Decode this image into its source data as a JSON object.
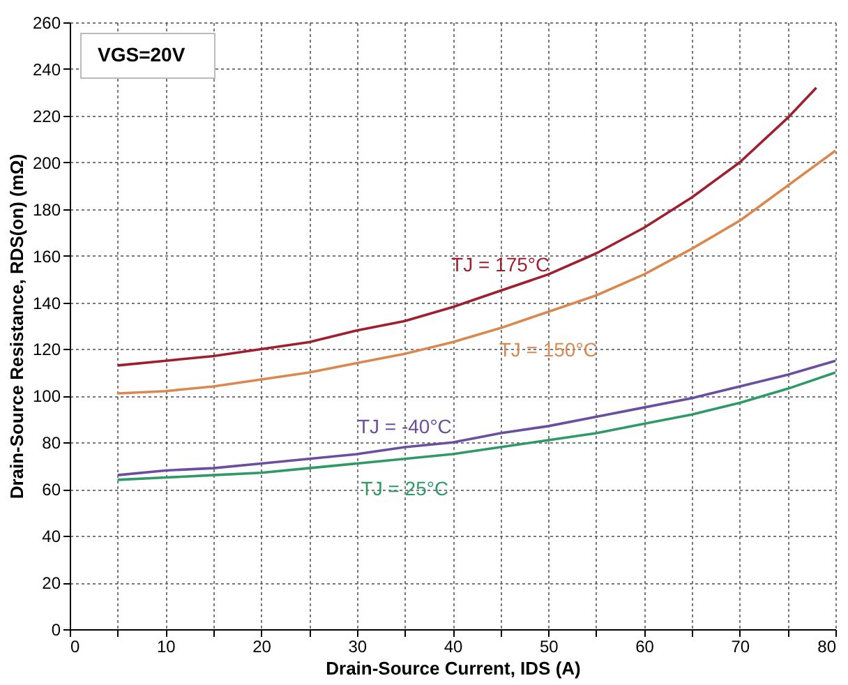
{
  "chart_data": {
    "type": "line",
    "xlabel": "Drain-Source Current, IDS (A)",
    "ylabel": "Drain-Source Resistance, RDS(on)  (mΩ)",
    "annotations": [
      "VGS=20V"
    ],
    "x": [
      5,
      10,
      15,
      20,
      25,
      30,
      35,
      40,
      45,
      50,
      55,
      60,
      65,
      70,
      75,
      78
    ],
    "series": [
      {
        "name": "TJ = 175°C",
        "color": "#9e1f2e",
        "values": [
          113,
          115,
          117,
          120,
          123,
          128,
          132,
          138,
          145,
          152,
          161,
          172,
          185,
          200,
          219,
          232
        ]
      },
      {
        "name": "TJ = 150°C",
        "color": "#d9894f",
        "x": [
          5,
          10,
          15,
          20,
          25,
          30,
          35,
          40,
          45,
          50,
          55,
          60,
          65,
          70,
          75,
          80
        ],
        "values": [
          101,
          102,
          104,
          107,
          110,
          114,
          118,
          123,
          129,
          136,
          143,
          152,
          163,
          175,
          190,
          205
        ]
      },
      {
        "name": "TJ = -40°C",
        "color": "#6b4ea0",
        "x": [
          5,
          10,
          15,
          20,
          25,
          30,
          35,
          40,
          45,
          50,
          55,
          60,
          65,
          70,
          75,
          80
        ],
        "values": [
          66,
          68,
          69,
          71,
          73,
          75,
          78,
          80,
          84,
          87,
          91,
          95,
          99,
          104,
          109,
          115
        ]
      },
      {
        "name": "TJ = 25°C",
        "color": "#2f9a68",
        "x": [
          5,
          10,
          15,
          20,
          25,
          30,
          35,
          40,
          45,
          50,
          55,
          60,
          65,
          70,
          75,
          80
        ],
        "values": [
          64,
          65,
          66,
          67,
          69,
          71,
          73,
          75,
          78,
          81,
          84,
          88,
          92,
          97,
          103,
          110
        ]
      }
    ],
    "xlim": [
      0,
      80
    ],
    "xticks": [
      0,
      {
        "value": 5,
        "label": null
      },
      10,
      {
        "value": 15,
        "label": null
      },
      20,
      {
        "value": 25,
        "label": null
      },
      30,
      {
        "value": 35,
        "label": null
      },
      40,
      {
        "value": 45,
        "label": null
      },
      50,
      {
        "value": 55,
        "label": null
      },
      60,
      {
        "value": 65,
        "label": null
      },
      70,
      {
        "value": 75,
        "label": null
      },
      80
    ],
    "ylim": [
      0,
      260
    ],
    "yticks": [
      0,
      20,
      40,
      60,
      80,
      100,
      120,
      140,
      160,
      180,
      200,
      220,
      240,
      260
    ],
    "grid": true,
    "legend": false,
    "marker": "none",
    "line_style": "solid"
  }
}
